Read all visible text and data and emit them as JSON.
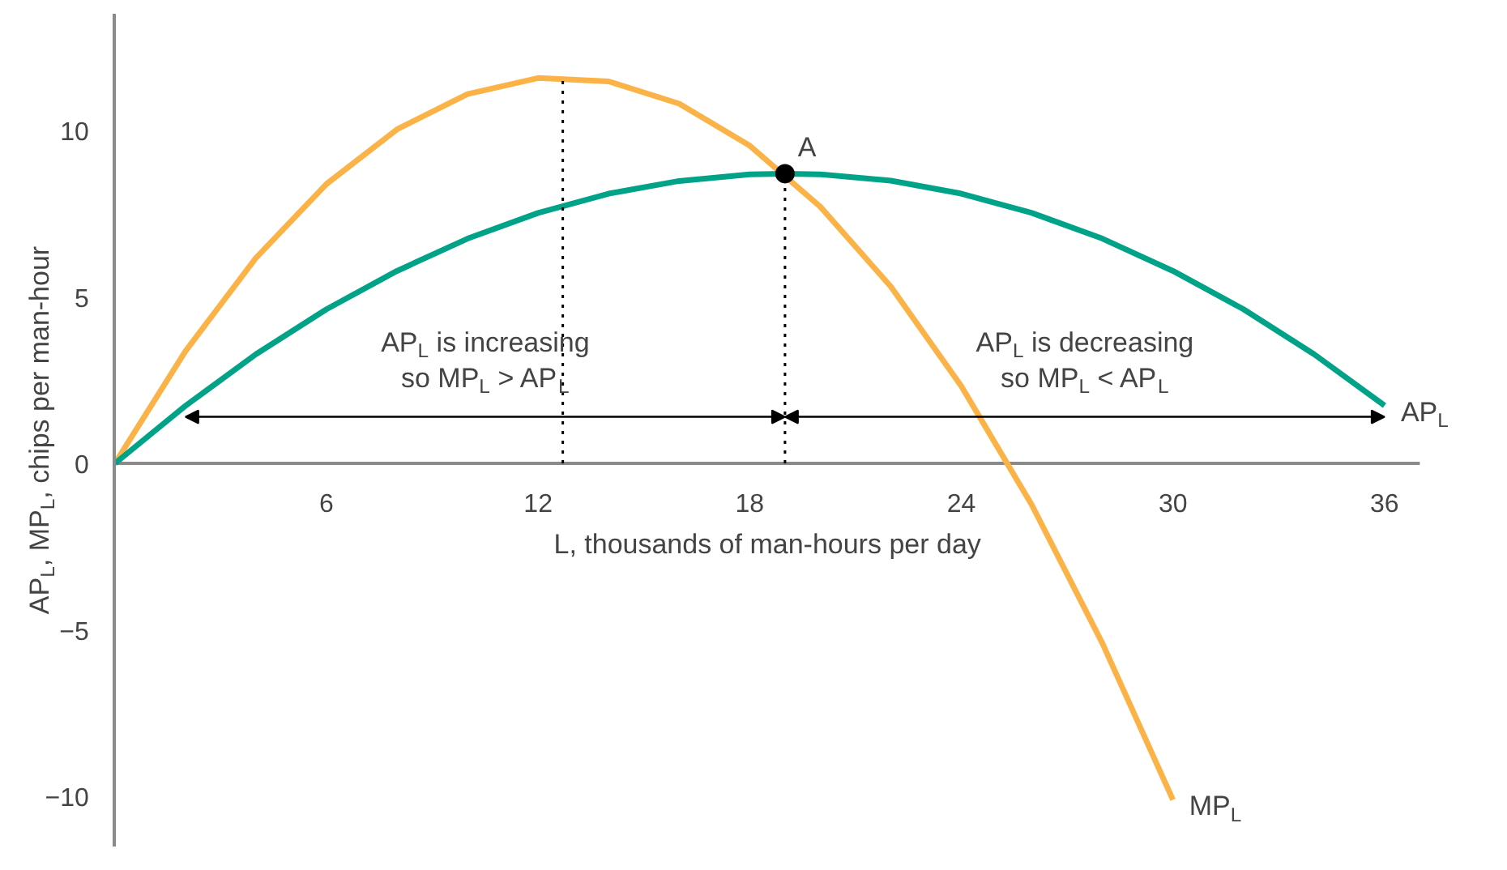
{
  "chart_data": {
    "type": "line",
    "xlabel": "L, thousands of man-hours per day",
    "ylabel": "AP$_{L}$, MP$_{L}$, chips per man-hour",
    "xlim": [
      0,
      37
    ],
    "ylim": [
      -11.5,
      13.5
    ],
    "xticks": [
      6,
      12,
      18,
      24,
      30,
      36
    ],
    "yticks": [
      -10,
      -5,
      0,
      5,
      10
    ],
    "series": [
      {
        "name": "MP$_{L}$",
        "color": "#fbb347",
        "x": [
          0,
          2,
          4,
          6,
          8,
          10,
          12,
          14,
          16,
          18,
          20,
          22,
          24,
          26,
          28,
          30
        ],
        "values": [
          0,
          3.37,
          6.17,
          8.39,
          10.03,
          11.09,
          11.57,
          11.47,
          10.8,
          9.54,
          7.71,
          5.31,
          2.32,
          -1.25,
          -5.4,
          -10.1
        ]
      },
      {
        "name": "AP$_{L}$",
        "color": "#00a388",
        "x": [
          0,
          2,
          4,
          6,
          8,
          10,
          12,
          14,
          16,
          18,
          19,
          20,
          22,
          24,
          26,
          28,
          30,
          32,
          34,
          36
        ],
        "values": [
          0,
          1.73,
          3.28,
          4.63,
          5.78,
          6.75,
          7.52,
          8.1,
          8.48,
          8.68,
          8.7,
          8.68,
          8.49,
          8.1,
          7.52,
          6.75,
          5.78,
          4.63,
          3.28,
          1.74
        ]
      },
      {
        "type": "scatter",
        "marker": "circle",
        "color": "#000000",
        "x": [
          19
        ],
        "values": [
          8.7
        ]
      }
    ],
    "ref_lines": [
      {
        "axis": "x",
        "value": 12.7,
        "line_style": "dotted",
        "color": "#000000"
      },
      {
        "axis": "x",
        "value": 19,
        "line_style": "dotted",
        "color": "#000000"
      }
    ],
    "annotations": [
      {
        "text": "A",
        "x": 19,
        "y": 8.7
      },
      "AP$_{L}$ is increasing\nso MP$_{L}$ > AP$_{L}$",
      "AP$_{L}$ is decreasing\nso MP$_{L}$ < AP$_{L}$"
    ],
    "grid": false,
    "legend": false,
    "marker": "none",
    "line_style": "solid"
  }
}
